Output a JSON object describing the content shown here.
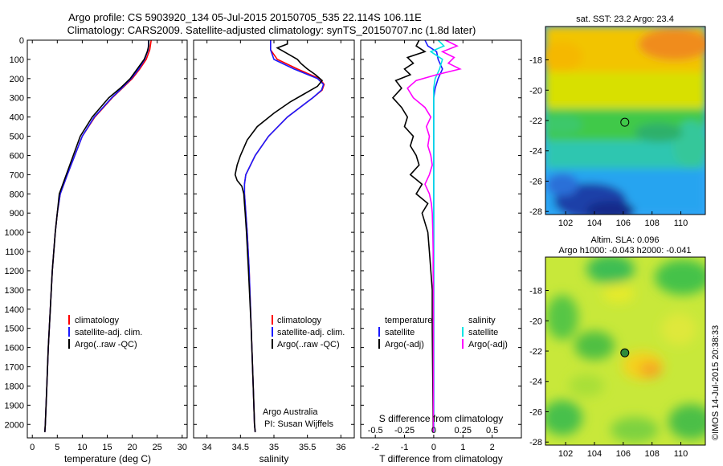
{
  "title": {
    "line1": "Argo profile: CS 5903920_134 05-Jul-2015 20150705_535 22.114S 106.11E",
    "line2": "Climatology: CARS2009. Satellite-adjusted climatology: synTS_20150707.nc (1.8d later)"
  },
  "colors": {
    "climatology": "#ff0000",
    "satellite": "#1a1aff",
    "argo": "#000000",
    "salinity_sat": "#00e5e5",
    "salinity_argo": "#ff00ff"
  },
  "chart_data": [
    {
      "type": "line",
      "panel": "temperature",
      "xlabel": "temperature (deg C)",
      "ylabel": "",
      "xlim": [
        -1,
        31
      ],
      "ylim": [
        2070,
        0
      ],
      "x_ticks": [
        0,
        5,
        10,
        15,
        20,
        25,
        30
      ],
      "y_ticks": [
        0,
        100,
        200,
        300,
        400,
        500,
        600,
        700,
        800,
        900,
        1000,
        1100,
        1200,
        1300,
        1400,
        1500,
        1600,
        1700,
        1800,
        1900,
        2000
      ],
      "legend": [
        "climatology",
        "satellite-adj. clim.",
        "Argo(..raw -QC)"
      ],
      "series": [
        {
          "name": "climatology",
          "depth": [
            0,
            50,
            100,
            150,
            200,
            250,
            300,
            400,
            500,
            600,
            700,
            800,
            900,
            1000,
            1200,
            1400,
            1600,
            1800,
            2000,
            2040
          ],
          "values": [
            23.8,
            23.5,
            22.8,
            21.5,
            20.0,
            18.0,
            16.0,
            12.5,
            10.0,
            8.5,
            7.0,
            5.6,
            5.0,
            4.6,
            4.0,
            3.6,
            3.2,
            2.9,
            2.6,
            2.5
          ]
        },
        {
          "name": "satellite-adj. clim.",
          "depth": [
            0,
            50,
            100,
            150,
            200,
            250,
            300,
            400,
            500,
            600,
            700,
            800,
            900,
            1000,
            1200,
            1400,
            1600,
            1800,
            2000,
            2040
          ],
          "values": [
            23.3,
            23.2,
            22.5,
            21.3,
            19.8,
            17.9,
            15.9,
            12.4,
            10.0,
            8.5,
            7.0,
            5.6,
            5.0,
            4.6,
            4.0,
            3.6,
            3.2,
            2.9,
            2.6,
            2.5
          ]
        },
        {
          "name": "Argo(..raw -QC)",
          "depth": [
            0,
            30,
            60,
            100,
            150,
            200,
            250,
            300,
            400,
            500,
            600,
            700,
            750,
            800,
            900,
            1000,
            1200,
            1400,
            1600,
            1800,
            2000,
            2040
          ],
          "values": [
            23.3,
            23.3,
            23.0,
            22.4,
            21.0,
            19.6,
            17.6,
            15.3,
            12.0,
            9.6,
            8.2,
            6.8,
            6.1,
            5.4,
            5.0,
            4.6,
            4.0,
            3.6,
            3.2,
            2.9,
            2.6,
            2.5
          ]
        }
      ]
    },
    {
      "type": "line",
      "panel": "salinity",
      "xlabel": "salinity",
      "ylabel": "",
      "xlim": [
        33.8,
        36.2
      ],
      "ylim": [
        2070,
        0
      ],
      "x_ticks": [
        34,
        34.5,
        35,
        35.5,
        36
      ],
      "legend": [
        "climatology",
        "satellite-adj. clim.",
        "Argo(..raw -QC)"
      ],
      "series": [
        {
          "name": "climatology",
          "depth": [
            0,
            50,
            100,
            150,
            200,
            230,
            260,
            300,
            400,
            500,
            600,
            700,
            750,
            800,
            850,
            900,
            1000,
            1200,
            1500,
            1800,
            2000,
            2040
          ],
          "values": [
            34.95,
            34.95,
            35.05,
            35.35,
            35.68,
            35.75,
            35.72,
            35.58,
            35.2,
            34.92,
            34.72,
            34.58,
            34.56,
            34.56,
            34.57,
            34.58,
            34.6,
            34.63,
            34.66,
            34.69,
            34.71,
            34.72
          ]
        },
        {
          "name": "satellite-adj. clim.",
          "depth": [
            0,
            50,
            100,
            150,
            200,
            230,
            260,
            300,
            400,
            500,
            600,
            700,
            750,
            800,
            850,
            900,
            1000,
            1200,
            1500,
            1800,
            2000,
            2040
          ],
          "values": [
            34.95,
            34.95,
            35.0,
            35.3,
            35.65,
            35.74,
            35.71,
            35.58,
            35.2,
            34.92,
            34.72,
            34.58,
            34.56,
            34.56,
            34.57,
            34.58,
            34.6,
            34.63,
            34.66,
            34.69,
            34.71,
            34.72
          ]
        },
        {
          "name": "Argo(..raw -QC)",
          "depth": [
            0,
            20,
            40,
            60,
            80,
            100,
            120,
            150,
            180,
            210,
            240,
            280,
            320,
            380,
            450,
            520,
            600,
            650,
            700,
            730,
            760,
            800,
            850,
            900,
            1000,
            1200,
            1500,
            1800,
            2000,
            2040
          ],
          "values": [
            35.2,
            35.2,
            35.05,
            35.15,
            35.25,
            35.35,
            35.4,
            35.5,
            35.62,
            35.72,
            35.65,
            35.45,
            35.25,
            35.0,
            34.75,
            34.6,
            34.5,
            34.45,
            34.42,
            34.45,
            34.52,
            34.55,
            34.56,
            34.57,
            34.59,
            34.62,
            34.66,
            34.69,
            34.71,
            34.72
          ]
        }
      ],
      "annotation": {
        "line1": "Argo Australia",
        "line2": "PI: Susan Wijffels"
      }
    },
    {
      "type": "line",
      "panel": "difference",
      "xlabel_top": "S difference from climatology",
      "xlabel_bottom": "T difference from climatology",
      "xlim": [
        -2.5,
        3.0
      ],
      "ylim": [
        2070,
        0
      ],
      "x_ticks_T": [
        -2,
        -1,
        0,
        1,
        2
      ],
      "x_ticks_S": [
        {
          "label": "-0.5",
          "at": -2
        },
        {
          "label": "-0.25",
          "at": -1
        },
        {
          "label": "0",
          "at": 0
        },
        {
          "label": "0.25",
          "at": 1
        },
        {
          "label": "0.5",
          "at": 2
        }
      ],
      "legend_temperature": {
        "title": "temperature",
        "items": [
          "satellite",
          "Argo(-adj)"
        ]
      },
      "legend_salinity": {
        "title": "salinity",
        "items": [
          "satellite",
          "Argo(-adj)"
        ]
      },
      "series": [
        {
          "name": "temperature satellite",
          "depth": [
            0,
            30,
            60,
            100,
            150,
            200,
            250,
            300,
            400,
            500,
            600,
            700,
            800,
            1000,
            1300,
            1600,
            2000,
            2040
          ],
          "values": [
            -0.3,
            -0.2,
            0.1,
            0.15,
            0.3,
            0.15,
            0.05,
            0.0,
            0.0,
            0.0,
            0.0,
            0.0,
            0.0,
            0.0,
            0.0,
            0.0,
            0.0,
            0.0
          ]
        },
        {
          "name": "temperature Argo(-adj)",
          "depth": [
            0,
            30,
            60,
            90,
            120,
            150,
            180,
            210,
            250,
            300,
            350,
            400,
            450,
            500,
            550,
            600,
            650,
            700,
            750,
            800,
            850,
            900,
            950,
            1000,
            1100,
            1200,
            1300,
            1500,
            1800,
            2000,
            2040
          ],
          "values": [
            -0.5,
            -0.6,
            -0.3,
            -0.9,
            -0.7,
            -1.0,
            -0.8,
            -1.3,
            -1.1,
            -1.4,
            -1.1,
            -0.9,
            -1.0,
            -0.7,
            -0.8,
            -0.6,
            -0.5,
            -0.8,
            -0.4,
            -0.6,
            -0.2,
            -0.4,
            -0.3,
            -0.2,
            -0.15,
            -0.1,
            -0.05,
            -0.05,
            -0.03,
            -0.02,
            -0.02
          ]
        },
        {
          "name": "salinity satellite",
          "depth": [
            0,
            30,
            60,
            100,
            150,
            200,
            250,
            300,
            400,
            500,
            600,
            700,
            800,
            1000,
            1300,
            1600,
            2000,
            2040
          ],
          "values": [
            0.15,
            0.35,
            -0.1,
            0.3,
            0.2,
            0.05,
            0.0,
            0.0,
            0.0,
            0.0,
            0.0,
            0.0,
            0.0,
            0.0,
            0.0,
            0.0,
            0.0,
            0.0
          ]
        },
        {
          "name": "salinity Argo(-adj)",
          "depth": [
            0,
            30,
            60,
            90,
            120,
            150,
            180,
            210,
            250,
            300,
            350,
            400,
            450,
            500,
            550,
            600,
            650,
            700,
            750,
            800,
            850,
            900,
            1000,
            1100,
            1200,
            1300,
            1500,
            1800,
            2000,
            2040
          ],
          "values": [
            0.4,
            0.8,
            0.3,
            0.7,
            0.5,
            0.9,
            0.1,
            -0.6,
            -0.9,
            -0.7,
            -0.3,
            -0.1,
            -0.25,
            -0.15,
            -0.2,
            -0.1,
            -0.05,
            -0.15,
            -0.3,
            -0.15,
            -0.08,
            -0.05,
            -0.03,
            -0.02,
            -0.02,
            -0.01,
            -0.01,
            -0.01,
            -0.01,
            -0.01
          ]
        }
      ]
    },
    {
      "type": "heatmap",
      "panel": "sst",
      "title": "sat. SST: 23.2  Argo: 23.4",
      "x_ticks": [
        102,
        104,
        106,
        108,
        110
      ],
      "y_ticks": [
        -18,
        -20,
        -22,
        -24,
        -26,
        -28
      ],
      "xlim": [
        100.6,
        111.7
      ],
      "ylim": [
        -28.2,
        -15.8
      ],
      "marker": {
        "lon": 106.11,
        "lat": -22.114
      }
    },
    {
      "type": "heatmap",
      "panel": "sla",
      "title_line1": "Altim. SLA: 0.096",
      "title_line2": "Argo h1000: -0.043 h2000: -0.041",
      "x_ticks": [
        102,
        104,
        106,
        108,
        110
      ],
      "y_ticks": [
        -18,
        -20,
        -22,
        -24,
        -26,
        -28
      ],
      "xlim": [
        100.6,
        111.7
      ],
      "ylim": [
        -28.2,
        -15.8
      ],
      "marker": {
        "lon": 106.11,
        "lat": -22.114
      }
    }
  ],
  "footer": {
    "stamp": "©IMOS 14-Jul-2015 20:38:33"
  }
}
